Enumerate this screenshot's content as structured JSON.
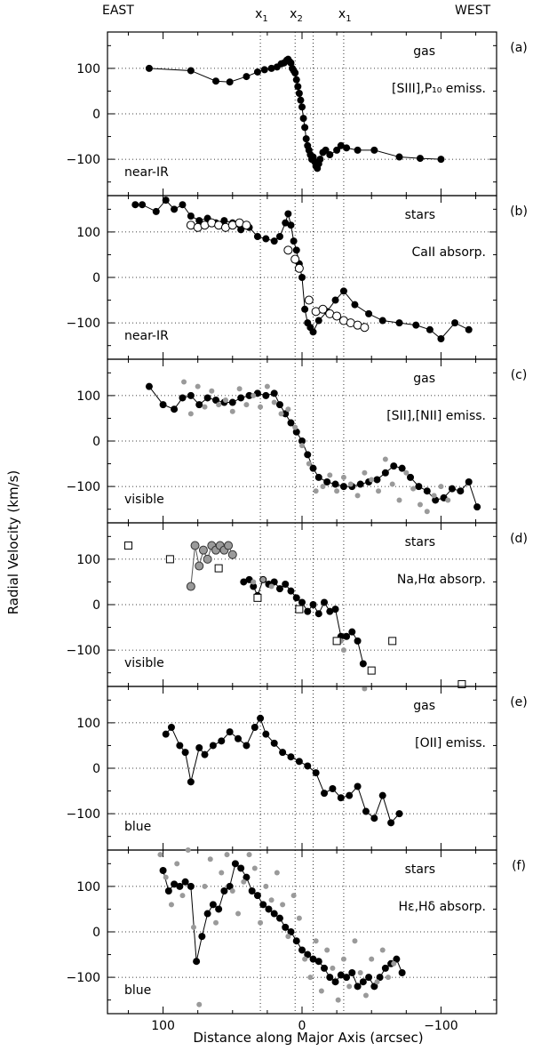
{
  "header": {
    "east_label": "EAST",
    "west_label": "WEST",
    "x_markers": [
      {
        "label": "x",
        "sub": "1",
        "x": 30
      },
      {
        "label": "x",
        "sub": "2",
        "x": 5
      },
      {
        "label": "x",
        "sub": "1",
        "x": -30
      }
    ]
  },
  "axes": {
    "xlabel": "Distance along Major Axis (arcsec)",
    "ylabel": "Radial Velocity (km/s)",
    "xlim": [
      140,
      -140
    ],
    "x_ticks": [
      "100",
      "0",
      "−100"
    ],
    "x_tick_values": [
      100,
      0,
      -100
    ],
    "y_ticks": [
      "100",
      "0",
      "−100"
    ],
    "y_tick_values": [
      100,
      0,
      -100
    ],
    "ylim": [
      -180,
      180
    ]
  },
  "chart_data": [
    {
      "type": "line",
      "panel": "(a)",
      "component": "gas",
      "feature": "[SIII],P₁₀ emiss.",
      "region": "near-IR",
      "xlim": [
        140,
        -140
      ],
      "ylim": [
        -180,
        180
      ],
      "series": [
        {
          "marker": "filled",
          "connected": true,
          "x": [
            110,
            80,
            62,
            52,
            40,
            32,
            27,
            22,
            18,
            15,
            13,
            11,
            10,
            9,
            8,
            7,
            6,
            5,
            4,
            3,
            2,
            1,
            0,
            -1,
            -2,
            -3,
            -4,
            -5,
            -6,
            -7,
            -8,
            -9,
            -10,
            -11,
            -12,
            -13,
            -15,
            -17,
            -20,
            -25,
            -28,
            -32,
            -40,
            -52,
            -70,
            -85,
            -100
          ],
          "y": [
            100,
            95,
            72,
            70,
            82,
            92,
            97,
            100,
            103,
            110,
            112,
            118,
            120,
            115,
            112,
            100,
            95,
            90,
            75,
            60,
            45,
            30,
            15,
            -10,
            -30,
            -55,
            -70,
            -80,
            -90,
            -100,
            -95,
            -105,
            -115,
            -120,
            -110,
            -100,
            -85,
            -80,
            -90,
            -80,
            -70,
            -75,
            -80,
            -80,
            -95,
            -98,
            -100
          ]
        }
      ]
    },
    {
      "type": "line",
      "panel": "(b)",
      "component": "stars",
      "feature": "CaII absorp.",
      "region": "near-IR",
      "xlim": [
        140,
        -140
      ],
      "ylim": [
        -180,
        180
      ],
      "series": [
        {
          "marker": "filled",
          "connected": true,
          "x": [
            120,
            115,
            105,
            98,
            92,
            86,
            80,
            74,
            68,
            62,
            56,
            50,
            44,
            38,
            32,
            26,
            20,
            16,
            12,
            10,
            8,
            6,
            4,
            2,
            0,
            -2,
            -4,
            -6,
            -8,
            -12,
            -18,
            -24,
            -30,
            -38,
            -48,
            -58,
            -70,
            -82,
            -92,
            -100,
            -110,
            -120
          ],
          "y": [
            160,
            160,
            145,
            170,
            150,
            160,
            135,
            125,
            130,
            120,
            125,
            120,
            105,
            110,
            90,
            85,
            80,
            90,
            120,
            140,
            115,
            80,
            60,
            30,
            0,
            -70,
            -100,
            -110,
            -120,
            -95,
            -75,
            -50,
            -30,
            -60,
            -80,
            -95,
            -100,
            -105,
            -115,
            -135,
            -100,
            -115
          ]
        },
        {
          "marker": "open",
          "connected": false,
          "x": [
            80,
            75,
            70,
            65,
            60,
            55,
            50,
            45,
            40,
            10,
            5,
            2,
            -5,
            -10,
            -15,
            -20,
            -25,
            -30,
            -35,
            -40,
            -45
          ],
          "y": [
            115,
            110,
            115,
            120,
            115,
            110,
            115,
            120,
            115,
            60,
            40,
            20,
            -50,
            -75,
            -70,
            -80,
            -85,
            -95,
            -100,
            -105,
            -110
          ]
        }
      ]
    },
    {
      "type": "line",
      "panel": "(c)",
      "component": "gas",
      "feature": "[SII],[NII] emiss.",
      "region": "visible",
      "xlim": [
        140,
        -140
      ],
      "ylim": [
        -180,
        180
      ],
      "series": [
        {
          "marker": "filled",
          "connected": true,
          "x": [
            110,
            100,
            92,
            86,
            80,
            74,
            68,
            62,
            56,
            50,
            44,
            38,
            32,
            26,
            20,
            16,
            12,
            8,
            4,
            0,
            -4,
            -8,
            -12,
            -18,
            -24,
            -30,
            -36,
            -42,
            -48,
            -54,
            -60,
            -66,
            -72,
            -78,
            -84,
            -90,
            -96,
            -102,
            -108,
            -114,
            -120,
            -126
          ],
          "y": [
            120,
            80,
            70,
            95,
            100,
            80,
            95,
            90,
            85,
            85,
            95,
            100,
            105,
            100,
            105,
            80,
            60,
            40,
            20,
            0,
            -30,
            -60,
            -80,
            -90,
            -95,
            -100,
            -100,
            -95,
            -90,
            -85,
            -70,
            -55,
            -60,
            -80,
            -100,
            -110,
            -130,
            -125,
            -105,
            -110,
            -90,
            -145
          ]
        },
        {
          "marker": "gray",
          "connected": false,
          "x": [
            85,
            80,
            75,
            70,
            65,
            60,
            55,
            50,
            45,
            40,
            35,
            30,
            25,
            20,
            15,
            10,
            5,
            0,
            -5,
            -10,
            -15,
            -20,
            -25,
            -30,
            -35,
            -40,
            -45,
            -50,
            -55,
            -60,
            -65,
            -70,
            -75,
            -80,
            -85,
            -90,
            -95,
            -100,
            -105
          ],
          "y": [
            130,
            60,
            120,
            75,
            110,
            80,
            90,
            65,
            115,
            80,
            100,
            75,
            120,
            85,
            60,
            70,
            30,
            -10,
            -50,
            -110,
            -100,
            -75,
            -110,
            -80,
            -95,
            -120,
            -70,
            -85,
            -110,
            -40,
            -95,
            -130,
            -70,
            -105,
            -140,
            -155,
            -120,
            -100,
            -130
          ]
        }
      ]
    },
    {
      "type": "line",
      "panel": "(d)",
      "component": "stars",
      "feature": "Na,Hα absorp.",
      "region": "visible",
      "xlim": [
        140,
        -140
      ],
      "ylim": [
        -180,
        180
      ],
      "series": [
        {
          "marker": "filled",
          "connected": true,
          "x": [
            42,
            38,
            35,
            32,
            28,
            24,
            20,
            16,
            12,
            8,
            4,
            0,
            -4,
            -8,
            -12,
            -16,
            -20,
            -24,
            -28,
            -32,
            -36,
            -40,
            -44
          ],
          "y": [
            50,
            55,
            40,
            20,
            55,
            45,
            50,
            35,
            45,
            30,
            15,
            5,
            -15,
            0,
            -20,
            5,
            -15,
            -10,
            -70,
            -70,
            -60,
            -80,
            -130
          ]
        },
        {
          "marker": "gray",
          "connected": true,
          "x": [
            80,
            77,
            74,
            71,
            68,
            65,
            62,
            59,
            56,
            53,
            50
          ],
          "y": [
            40,
            130,
            85,
            120,
            100,
            130,
            120,
            130,
            120,
            130,
            110
          ]
        },
        {
          "marker": "gray",
          "connected": false,
          "x": [
            35,
            28,
            22,
            -28,
            -30,
            -45
          ],
          "y": [
            50,
            55,
            40,
            -80,
            -100,
            -185
          ]
        },
        {
          "marker": "square",
          "connected": false,
          "x": [
            125,
            95,
            60,
            32,
            2,
            -25,
            -50,
            -65,
            -115
          ],
          "y": [
            130,
            100,
            80,
            15,
            -10,
            -80,
            -145,
            -80,
            -175
          ]
        }
      ]
    },
    {
      "type": "line",
      "panel": "(e)",
      "component": "gas",
      "feature": "[OII] emiss.",
      "region": "blue",
      "xlim": [
        140,
        -140
      ],
      "ylim": [
        -180,
        180
      ],
      "series": [
        {
          "marker": "filled",
          "connected": true,
          "x": [
            98,
            94,
            88,
            84,
            80,
            74,
            70,
            64,
            58,
            52,
            46,
            40,
            34,
            30,
            26,
            20,
            14,
            8,
            2,
            -4,
            -10,
            -16,
            -22,
            -28,
            -34,
            -40,
            -46,
            -52,
            -58,
            -64,
            -70
          ],
          "y": [
            75,
            90,
            50,
            35,
            -30,
            45,
            30,
            50,
            60,
            80,
            65,
            50,
            90,
            110,
            75,
            55,
            35,
            25,
            15,
            5,
            -10,
            -55,
            -45,
            -65,
            -60,
            -40,
            -95,
            -110,
            -60,
            -120,
            -100
          ]
        }
      ]
    },
    {
      "type": "line",
      "panel": "(f)",
      "component": "stars",
      "feature": "Hε,Hδ absorp.",
      "region": "blue",
      "xlim": [
        140,
        -140
      ],
      "ylim": [
        -180,
        180
      ],
      "series": [
        {
          "marker": "filled",
          "connected": true,
          "x": [
            100,
            96,
            92,
            88,
            84,
            80,
            76,
            72,
            68,
            64,
            60,
            56,
            52,
            48,
            44,
            40,
            36,
            32,
            28,
            24,
            20,
            16,
            12,
            8,
            4,
            0,
            -4,
            -8,
            -12,
            -16,
            -20,
            -24,
            -28,
            -32,
            -36,
            -40,
            -44,
            -48,
            -52,
            -56,
            -60,
            -64,
            -68,
            -72
          ],
          "y": [
            135,
            90,
            105,
            100,
            110,
            100,
            -65,
            -10,
            40,
            60,
            50,
            90,
            100,
            150,
            140,
            120,
            90,
            80,
            60,
            50,
            40,
            30,
            10,
            0,
            -20,
            -40,
            -50,
            -60,
            -65,
            -80,
            -100,
            -110,
            -95,
            -100,
            -90,
            -120,
            -110,
            -100,
            -120,
            -100,
            -80,
            -70,
            -60,
            -90
          ]
        },
        {
          "marker": "gray",
          "connected": false,
          "x": [
            102,
            98,
            94,
            90,
            86,
            82,
            78,
            74,
            70,
            66,
            62,
            58,
            54,
            50,
            46,
            42,
            38,
            34,
            30,
            26,
            22,
            18,
            14,
            10,
            6,
            2,
            -2,
            -6,
            -10,
            -14,
            -18,
            -22,
            -26,
            -30,
            -34,
            -38,
            -42,
            -46,
            -50,
            -54,
            -58,
            -62,
            -66
          ],
          "y": [
            170,
            120,
            60,
            150,
            80,
            180,
            10,
            -160,
            100,
            160,
            20,
            130,
            170,
            90,
            40,
            110,
            170,
            140,
            20,
            100,
            70,
            130,
            60,
            -10,
            80,
            30,
            -60,
            -100,
            -20,
            -130,
            -40,
            -80,
            -150,
            -60,
            -120,
            -20,
            -90,
            -140,
            -60,
            -110,
            -40,
            -100,
            -70
          ]
        }
      ]
    }
  ]
}
